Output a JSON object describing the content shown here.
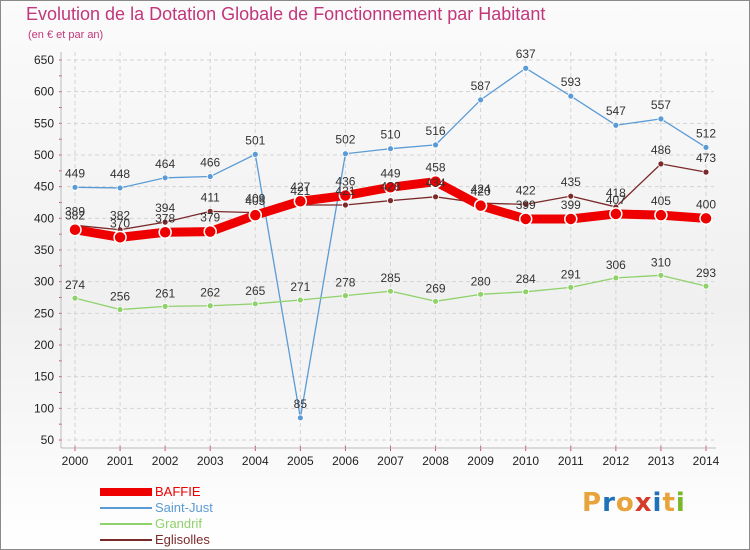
{
  "title": "Evolution de la Dotation Globale de Fonctionnement par Habitant",
  "subtitle": "(en € et par an)",
  "logo": {
    "letters": [
      "P",
      "r",
      "o",
      "x",
      "i",
      "t",
      "i"
    ],
    "colors": [
      "#e8a33a",
      "#1f72b8",
      "#e8a33a",
      "#d63a2a",
      "#1f72b8",
      "#e8a33a",
      "#76b82a"
    ]
  },
  "chart_data": {
    "type": "line",
    "title": "Evolution de la Dotation Globale de Fonctionnement par Habitant",
    "subtitle": "(en € et par an)",
    "xlabel": "",
    "ylabel": "",
    "ylim": [
      50,
      650
    ],
    "yticks": [
      50,
      100,
      150,
      200,
      250,
      300,
      350,
      400,
      450,
      500,
      550,
      600,
      650
    ],
    "x": [
      "2000",
      "2001",
      "2002",
      "2003",
      "2004",
      "2005",
      "2006",
      "2007",
      "2008",
      "2009",
      "2010",
      "2011",
      "2012",
      "2013",
      "2014"
    ],
    "grid": true,
    "legend_position": "bottom-left",
    "series": [
      {
        "name": "Saint-Just",
        "color": "#5b9bd5",
        "values": [
          449,
          448,
          464,
          466,
          501,
          85,
          502,
          510,
          516,
          587,
          637,
          593,
          547,
          557,
          512
        ]
      },
      {
        "name": "Grandrif",
        "color": "#8fd16a",
        "values": [
          274,
          256,
          261,
          262,
          265,
          271,
          278,
          285,
          269,
          280,
          284,
          291,
          306,
          310,
          293
        ]
      },
      {
        "name": "Eglisolles",
        "color": "#7a2a2a",
        "values": [
          389,
          382,
          394,
          411,
          409,
          421,
          421,
          428,
          434,
          424,
          422,
          435,
          418,
          486,
          473
        ]
      },
      {
        "name": "BAFFIE",
        "color": "#ee0000",
        "values": [
          382,
          370,
          378,
          379,
          405,
          427,
          436,
          449,
          458,
          420,
          399,
          399,
          407,
          405,
          400
        ]
      }
    ]
  }
}
